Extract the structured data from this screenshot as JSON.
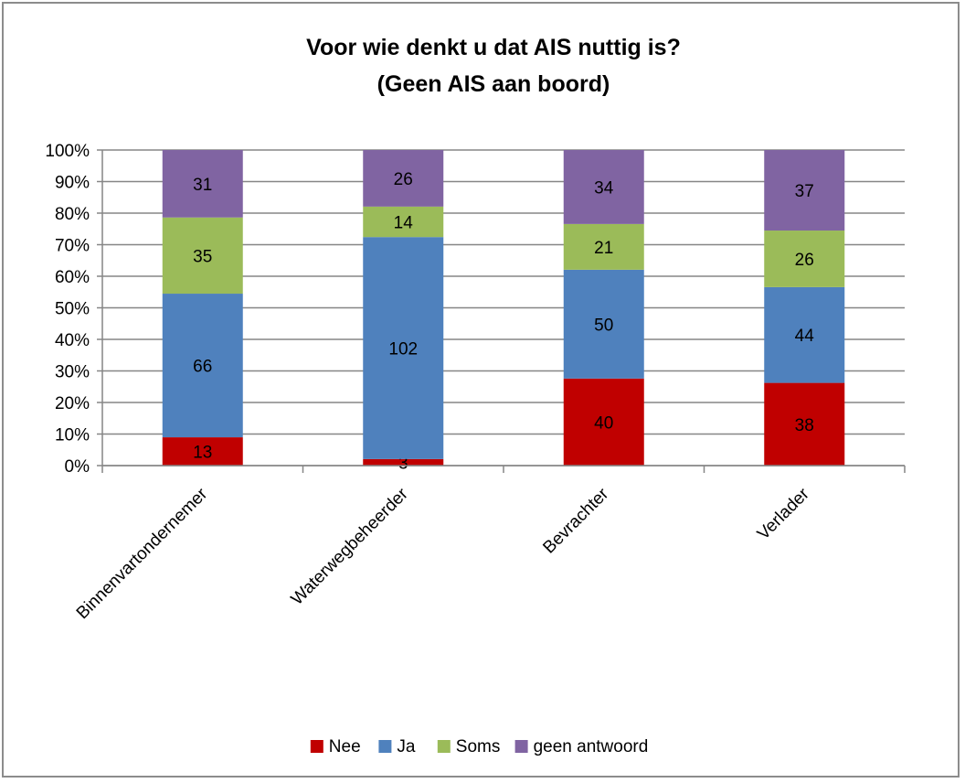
{
  "chart_data": {
    "type": "bar",
    "stacked": "percent",
    "title": "Voor wie denkt u dat AIS nuttig is?",
    "subtitle": "(Geen AIS aan boord)",
    "categories": [
      "Binnenvartondernemer",
      "Waterwegbeheerder",
      "Bevrachter",
      "Verlader"
    ],
    "series": [
      {
        "name": "Nee",
        "values": [
          13,
          3,
          40,
          38
        ],
        "color": "#c00000"
      },
      {
        "name": "Ja",
        "values": [
          66,
          102,
          50,
          44
        ],
        "color": "#4f81bd"
      },
      {
        "name": "Soms",
        "values": [
          35,
          14,
          21,
          26
        ],
        "color": "#9bbb59"
      },
      {
        "name": "geen antwoord",
        "values": [
          31,
          26,
          34,
          37
        ],
        "color": "#8064a2"
      }
    ],
    "yticks": [
      "0%",
      "10%",
      "20%",
      "30%",
      "40%",
      "50%",
      "60%",
      "70%",
      "80%",
      "90%",
      "100%"
    ],
    "ylim": [
      0,
      100
    ],
    "grid": true,
    "legend": "bottom"
  }
}
